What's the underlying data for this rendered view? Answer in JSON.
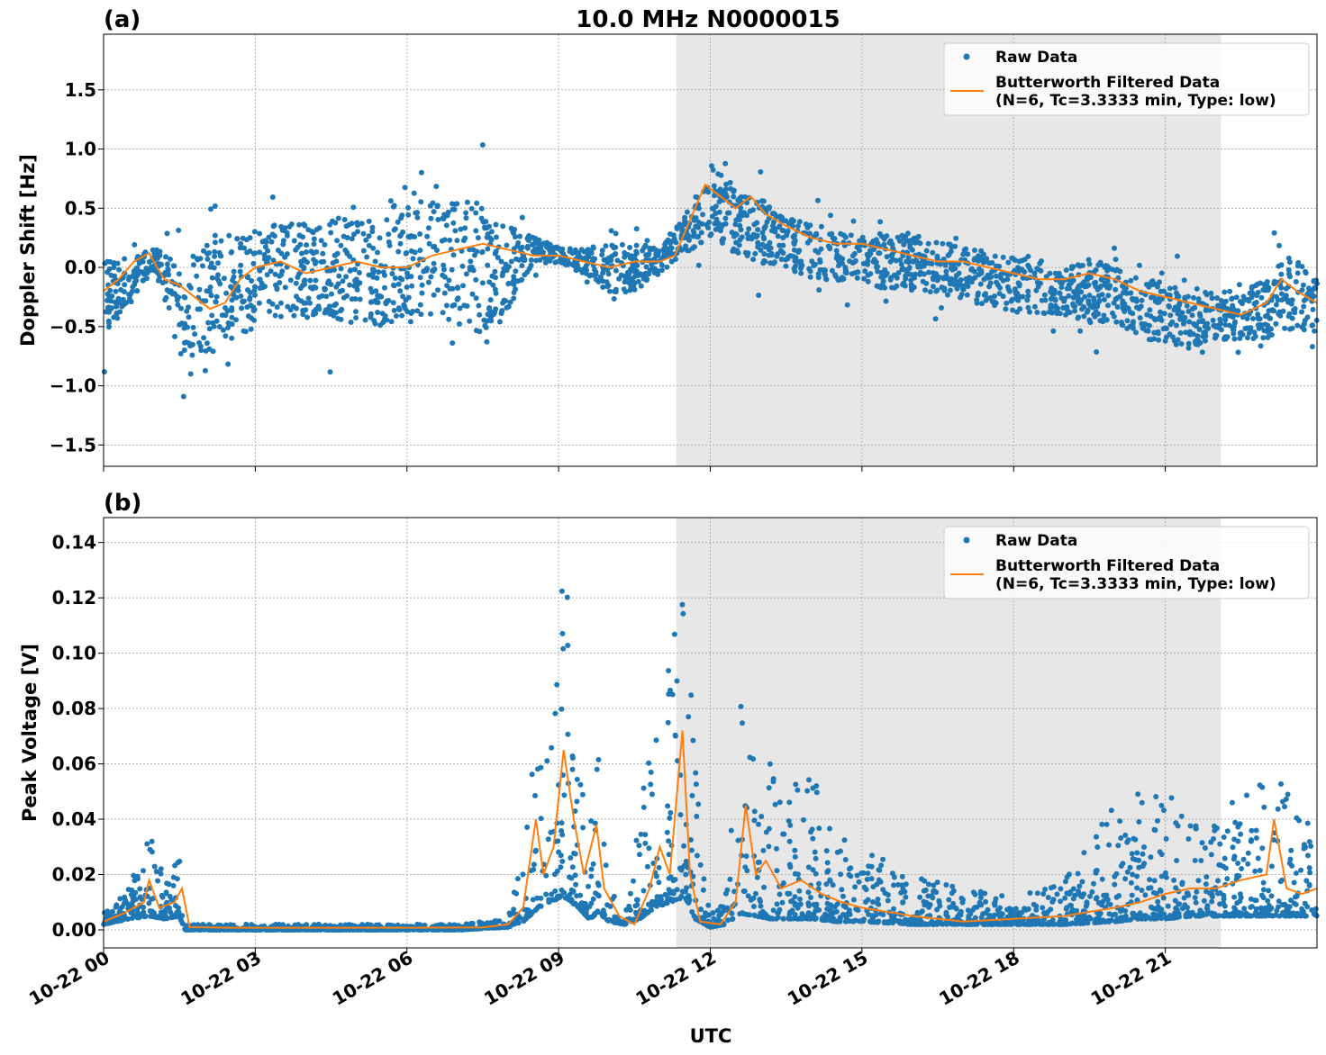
{
  "figure": {
    "title": "10.0 MHz N0000015",
    "xlabel": "UTC",
    "x_tick_labels": [
      "10-22 00",
      "10-22 03",
      "10-22 06",
      "10-22 09",
      "10-22 12",
      "10-22 15",
      "10-22 18",
      "10-22 21"
    ],
    "legend": {
      "raw_label": "Raw Data",
      "filtered_label_line1": "Butterworth Filtered Data",
      "filtered_label_line2": "(N=6, Tc=3.3333 min, Type: low)"
    },
    "colors": {
      "raw": "#1f77b4",
      "filtered": "#ff7f0e",
      "shade": "#e7e7e7",
      "grid": "#b0b0b0"
    }
  },
  "chart_data": [
    {
      "panel": "(a)",
      "type": "scatter",
      "ylabel": "Doppler Shift [Hz]",
      "x_unit": "UTC hours since 10-22 00:00",
      "xlim": [
        0,
        24
      ],
      "ylim": [
        -1.68,
        1.97
      ],
      "y_ticks": [
        -1.5,
        -1.0,
        -0.5,
        0.0,
        0.5,
        1.0,
        1.5
      ],
      "y_tick_labels": [
        "−1.5",
        "−1.0",
        "−0.5",
        "0.0",
        "0.5",
        "1.0",
        "1.5"
      ],
      "shaded_x": [
        11.33,
        22.1
      ],
      "grid": true,
      "legend_position": "upper right",
      "series": [
        {
          "name": "Raw Data",
          "type": "scatter",
          "x": [
            0.0,
            0.5,
            1.0,
            1.5,
            2.0,
            2.5,
            3.0,
            3.5,
            4.0,
            4.5,
            5.0,
            5.5,
            6.0,
            6.5,
            7.0,
            7.5,
            8.0,
            8.5,
            9.0,
            9.5,
            10.0,
            10.5,
            11.0,
            11.5,
            12.0,
            12.5,
            13.0,
            13.5,
            14.0,
            14.5,
            15.0,
            15.5,
            16.0,
            16.5,
            17.0,
            17.5,
            18.0,
            18.5,
            19.0,
            19.5,
            20.0,
            20.5,
            21.0,
            21.5,
            22.0,
            22.5,
            23.0,
            23.5,
            24.0
          ],
          "y_low": [
            -0.7,
            -0.4,
            -0.05,
            -0.9,
            -1.0,
            -0.8,
            -0.7,
            -0.6,
            -0.6,
            -0.6,
            -0.7,
            -0.7,
            -0.6,
            -0.6,
            -0.7,
            -0.8,
            -0.5,
            0.0,
            0.0,
            -0.1,
            -0.3,
            -0.3,
            -0.1,
            0.05,
            0.1,
            0.0,
            -0.1,
            -0.1,
            -0.2,
            -0.2,
            -0.2,
            -0.3,
            -0.3,
            -0.3,
            -0.4,
            -0.4,
            -0.5,
            -0.5,
            -0.5,
            -0.6,
            -0.6,
            -0.7,
            -0.8,
            -0.8,
            -0.7,
            -0.7,
            -0.7,
            -0.7,
            -0.6
          ],
          "y_high": [
            0.2,
            0.15,
            0.2,
            0.2,
            0.4,
            0.5,
            0.5,
            0.55,
            0.55,
            0.6,
            0.6,
            0.65,
            0.7,
            0.75,
            0.8,
            0.8,
            0.5,
            0.3,
            0.2,
            0.2,
            0.3,
            0.3,
            0.2,
            0.5,
            1.0,
            0.8,
            0.7,
            0.5,
            0.5,
            0.4,
            0.35,
            0.4,
            0.4,
            0.3,
            0.3,
            0.2,
            0.2,
            0.2,
            0.1,
            0.2,
            0.1,
            0.0,
            0.0,
            -0.1,
            -0.1,
            -0.1,
            0.0,
            0.3,
            0.0
          ]
        },
        {
          "name": "Butterworth Filtered Data",
          "type": "line",
          "x": [
            0.0,
            0.3,
            0.6,
            0.9,
            1.2,
            1.5,
            1.8,
            2.1,
            2.4,
            2.7,
            3.0,
            3.5,
            4.0,
            4.5,
            5.0,
            5.5,
            6.0,
            6.5,
            7.0,
            7.5,
            8.0,
            8.5,
            9.0,
            9.5,
            10.0,
            10.5,
            11.0,
            11.3,
            11.6,
            11.9,
            12.2,
            12.5,
            12.8,
            13.1,
            13.5,
            14.0,
            14.5,
            15.0,
            15.5,
            16.0,
            16.5,
            17.0,
            17.5,
            18.0,
            18.5,
            19.0,
            19.5,
            20.0,
            20.5,
            21.0,
            21.5,
            22.0,
            22.5,
            23.0,
            23.3,
            23.6,
            24.0
          ],
          "y": [
            -0.2,
            -0.1,
            0.05,
            0.12,
            -0.1,
            -0.15,
            -0.25,
            -0.35,
            -0.3,
            -0.1,
            0.0,
            0.05,
            -0.05,
            0.0,
            0.05,
            0.0,
            0.0,
            0.1,
            0.15,
            0.2,
            0.15,
            0.1,
            0.1,
            0.05,
            0.0,
            0.05,
            0.05,
            0.1,
            0.4,
            0.7,
            0.6,
            0.5,
            0.6,
            0.45,
            0.35,
            0.25,
            0.2,
            0.2,
            0.15,
            0.1,
            0.05,
            0.05,
            0.0,
            -0.05,
            -0.1,
            -0.1,
            -0.05,
            -0.1,
            -0.2,
            -0.25,
            -0.3,
            -0.35,
            -0.4,
            -0.3,
            -0.1,
            -0.2,
            -0.3
          ]
        }
      ]
    },
    {
      "panel": "(b)",
      "type": "scatter",
      "ylabel": "Peak Voltage [V]",
      "x_unit": "UTC hours since 10-22 00:00",
      "xlim": [
        0,
        24
      ],
      "ylim": [
        -0.0065,
        0.149
      ],
      "y_ticks": [
        0.0,
        0.02,
        0.04,
        0.06,
        0.08,
        0.1,
        0.12,
        0.14
      ],
      "y_tick_labels": [
        "0.00",
        "0.02",
        "0.04",
        "0.06",
        "0.08",
        "0.10",
        "0.12",
        "0.14"
      ],
      "shaded_x": [
        11.33,
        22.1
      ],
      "grid": true,
      "legend_position": "upper right",
      "series": [
        {
          "name": "Raw Data",
          "type": "scatter",
          "x": [
            0.0,
            0.5,
            0.9,
            1.2,
            1.5,
            1.6,
            2.0,
            3.0,
            4.0,
            5.0,
            6.0,
            7.0,
            8.0,
            8.3,
            8.6,
            8.8,
            9.1,
            9.4,
            9.6,
            9.8,
            10.0,
            10.3,
            10.6,
            10.9,
            11.2,
            11.5,
            11.7,
            12.0,
            12.3,
            12.6,
            12.9,
            13.2,
            13.5,
            14.0,
            14.5,
            15.0,
            16.0,
            17.0,
            18.0,
            19.0,
            20.0,
            20.5,
            21.0,
            21.5,
            22.0,
            22.5,
            23.0,
            23.5,
            24.0
          ],
          "y_low": [
            0.002,
            0.004,
            0.005,
            0.004,
            0.005,
            0.0,
            0.0,
            0.0,
            0.0,
            0.0,
            0.0,
            0.0,
            0.001,
            0.003,
            0.008,
            0.01,
            0.012,
            0.008,
            0.004,
            0.006,
            0.003,
            0.002,
            0.004,
            0.008,
            0.01,
            0.012,
            0.004,
            0.001,
            0.002,
            0.006,
            0.005,
            0.004,
            0.004,
            0.004,
            0.003,
            0.003,
            0.002,
            0.002,
            0.002,
            0.002,
            0.003,
            0.004,
            0.004,
            0.005,
            0.005,
            0.005,
            0.005,
            0.005,
            0.005
          ],
          "y_high": [
            0.006,
            0.015,
            0.036,
            0.02,
            0.027,
            0.002,
            0.002,
            0.002,
            0.002,
            0.002,
            0.002,
            0.002,
            0.004,
            0.03,
            0.078,
            0.06,
            0.142,
            0.06,
            0.035,
            0.066,
            0.025,
            0.005,
            0.05,
            0.07,
            0.1,
            0.135,
            0.06,
            0.005,
            0.012,
            0.082,
            0.06,
            0.065,
            0.05,
            0.058,
            0.035,
            0.03,
            0.02,
            0.015,
            0.012,
            0.02,
            0.045,
            0.05,
            0.056,
            0.04,
            0.04,
            0.05,
            0.06,
            0.074,
            0.03
          ]
        },
        {
          "name": "Butterworth Filtered Data",
          "type": "line",
          "x": [
            0.0,
            0.4,
            0.8,
            0.9,
            1.1,
            1.4,
            1.55,
            1.7,
            2.5,
            4.0,
            6.0,
            7.5,
            8.0,
            8.3,
            8.55,
            8.7,
            8.9,
            9.1,
            9.3,
            9.5,
            9.75,
            9.9,
            10.2,
            10.5,
            10.8,
            11.0,
            11.2,
            11.45,
            11.6,
            11.8,
            12.2,
            12.5,
            12.7,
            12.9,
            13.1,
            13.4,
            13.8,
            14.2,
            14.6,
            15.0,
            16.0,
            17.0,
            18.0,
            19.0,
            20.0,
            20.5,
            21.0,
            21.5,
            22.0,
            22.5,
            23.0,
            23.15,
            23.4,
            23.7,
            24.0
          ],
          "y": [
            0.003,
            0.006,
            0.01,
            0.018,
            0.008,
            0.01,
            0.015,
            0.001,
            0.0008,
            0.0008,
            0.0008,
            0.0009,
            0.002,
            0.008,
            0.04,
            0.02,
            0.03,
            0.065,
            0.04,
            0.02,
            0.038,
            0.015,
            0.005,
            0.002,
            0.015,
            0.03,
            0.02,
            0.072,
            0.02,
            0.003,
            0.002,
            0.01,
            0.045,
            0.02,
            0.025,
            0.015,
            0.018,
            0.013,
            0.01,
            0.008,
            0.005,
            0.003,
            0.004,
            0.005,
            0.008,
            0.01,
            0.013,
            0.015,
            0.015,
            0.018,
            0.02,
            0.04,
            0.015,
            0.013,
            0.015
          ]
        }
      ]
    }
  ]
}
